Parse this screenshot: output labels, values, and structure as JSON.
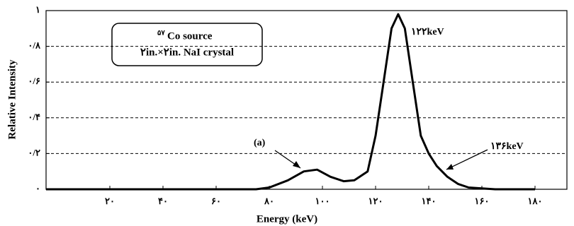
{
  "chart_data": {
    "type": "line",
    "xlabel": "Energy (keV)",
    "ylabel": "Relative Intensity",
    "x": [
      -4,
      20,
      40,
      60,
      75,
      80,
      87,
      93,
      98,
      103,
      108,
      112,
      117,
      120,
      123,
      126,
      128.5,
      131,
      134,
      137,
      140,
      143,
      147,
      151,
      155,
      165,
      180
    ],
    "series": [
      {
        "color": "#000000",
        "values": [
          0,
          0,
          0,
          0,
          0,
          0.01,
          0.05,
          0.1,
          0.11,
          0.07,
          0.045,
          0.05,
          0.1,
          0.3,
          0.6,
          0.9,
          0.98,
          0.9,
          0.6,
          0.3,
          0.2,
          0.13,
          0.07,
          0.03,
          0.01,
          0,
          0
        ]
      }
    ],
    "xlim": [
      -4,
      192
    ],
    "ylim": [
      0,
      1
    ],
    "xticks": [
      {
        "value": 20,
        "label": "۲۰"
      },
      {
        "value": 40,
        "label": "۴۰"
      },
      {
        "value": 60,
        "label": "۶۰"
      },
      {
        "value": 80,
        "label": "۸۰"
      },
      {
        "value": 100,
        "label": "۱۰۰"
      },
      {
        "value": 120,
        "label": "۱۲۰"
      },
      {
        "value": 140,
        "label": "۱۴۰"
      },
      {
        "value": 160,
        "label": "۱۶۰"
      },
      {
        "value": 180,
        "label": "۱۸۰"
      }
    ],
    "yticks": [
      {
        "value": 0,
        "label": "۰"
      },
      {
        "value": 0.2,
        "label": "۰/۲"
      },
      {
        "value": 0.4,
        "label": "۰/۴"
      },
      {
        "value": 0.6,
        "label": "۰/۶"
      },
      {
        "value": 0.8,
        "label": "۰/۸"
      },
      {
        "value": 1,
        "label": "۱"
      }
    ],
    "grid": true,
    "legend_box": {
      "superscript": "۵۷",
      "line1": "Co source",
      "line2": "۲in.×۲in. NaI crystal"
    },
    "annotations": [
      "۱۲۲keV",
      "۱۳۶keV",
      "(a)"
    ]
  }
}
